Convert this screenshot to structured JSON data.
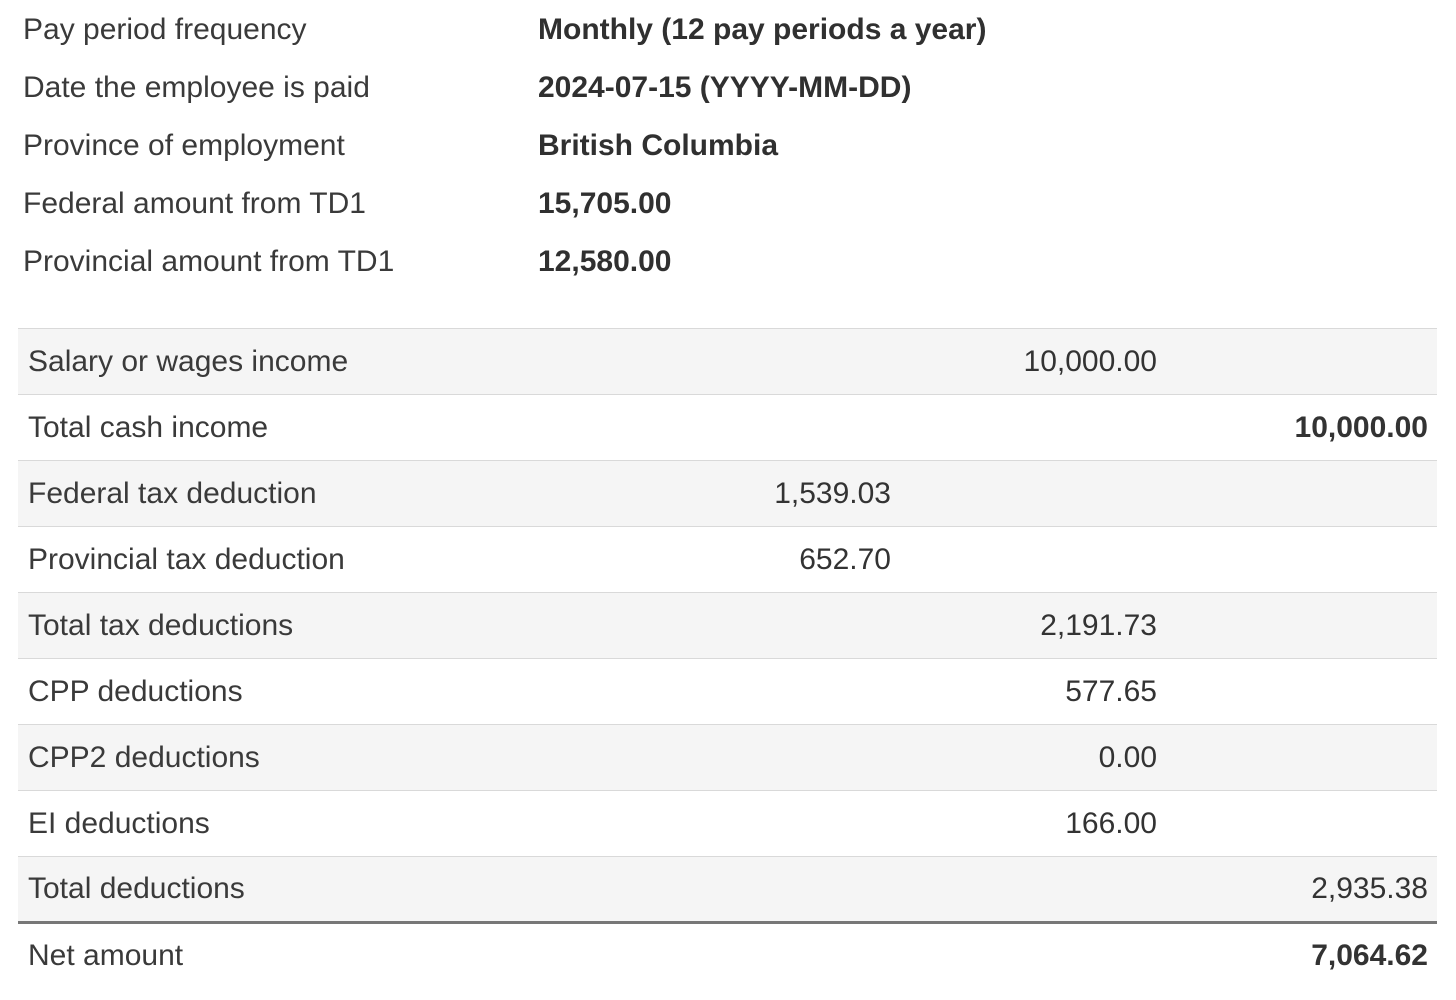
{
  "summary": {
    "rows": [
      {
        "label": "Pay period frequency",
        "value": "Monthly (12 pay periods a year)"
      },
      {
        "label": "Date the employee is paid",
        "value": "2024-07-15 (YYYY-MM-DD)"
      },
      {
        "label": "Province of employment",
        "value": "British Columbia"
      },
      {
        "label": "Federal amount from TD1",
        "value": "15,705.00"
      },
      {
        "label": "Provincial amount from TD1",
        "value": "12,580.00"
      }
    ]
  },
  "table": {
    "rows": [
      {
        "label": "Salary or wages income",
        "value": "10,000.00",
        "col": 2,
        "label_bold": false,
        "value_bold": false,
        "thick_border_below": false
      },
      {
        "label": "Total cash income",
        "value": "10,000.00",
        "col": 3,
        "label_bold": true,
        "value_bold": true,
        "thick_border_below": false
      },
      {
        "label": "Federal tax deduction",
        "value": "1,539.03",
        "col": 1,
        "label_bold": false,
        "value_bold": false,
        "thick_border_below": false
      },
      {
        "label": "Provincial tax deduction",
        "value": "652.70",
        "col": 1,
        "label_bold": false,
        "value_bold": false,
        "thick_border_below": false
      },
      {
        "label": "Total tax deductions",
        "value": "2,191.73",
        "col": 2,
        "label_bold": false,
        "value_bold": false,
        "thick_border_below": false
      },
      {
        "label": "CPP deductions",
        "value": "577.65",
        "col": 2,
        "label_bold": false,
        "value_bold": false,
        "thick_border_below": false
      },
      {
        "label": "CPP2 deductions",
        "value": "0.00",
        "col": 2,
        "label_bold": false,
        "value_bold": false,
        "thick_border_below": false
      },
      {
        "label": "EI deductions",
        "value": "166.00",
        "col": 2,
        "label_bold": false,
        "value_bold": false,
        "thick_border_below": false
      },
      {
        "label": "Total deductions",
        "value": "2,935.38",
        "col": 3,
        "label_bold": true,
        "value_bold": false,
        "thick_border_below": true
      },
      {
        "label": "Net amount",
        "value": "7,064.62",
        "col": 3,
        "label_bold": true,
        "value_bold": true,
        "thick_border_below": false
      }
    ]
  },
  "colors": {
    "text": "#333333",
    "row_stripe": "#f5f5f5",
    "row_border": "#d9d9d9",
    "total_divider": "#777777",
    "background": "#ffffff"
  }
}
